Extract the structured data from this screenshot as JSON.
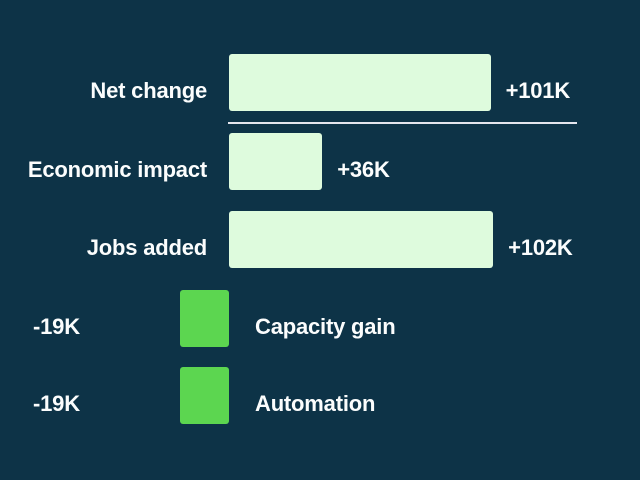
{
  "chart_data": {
    "type": "bar",
    "orientation": "horizontal",
    "title": "",
    "xlabel": "",
    "ylabel": "",
    "unit": "K",
    "axis_baseline": 0,
    "grid": false,
    "legend": "none",
    "background_color": "#0d3347",
    "text_color": "#fbfdfd",
    "separator_color": "#e4e6ee",
    "positive_bar_color": "#defbdd",
    "negative_bar_color": "#5cd650",
    "rows": [
      {
        "label": "Net change",
        "value": 101,
        "value_label": "+101K",
        "role": "total"
      },
      {
        "label": "Economic impact",
        "value": 36,
        "value_label": "+36K",
        "role": "component"
      },
      {
        "label": "Jobs added",
        "value": 102,
        "value_label": "+102K",
        "role": "component"
      },
      {
        "label": "Capacity gain",
        "value": -19,
        "value_label": "-19K",
        "role": "component"
      },
      {
        "label": "Automation",
        "value": -19,
        "value_label": "-19K",
        "role": "component"
      }
    ]
  }
}
